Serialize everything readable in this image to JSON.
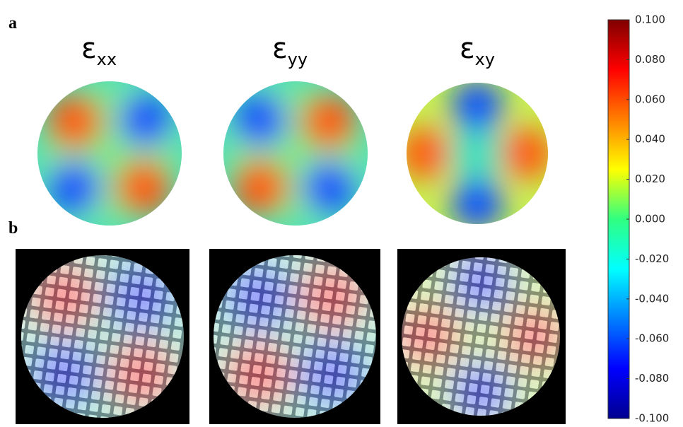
{
  "panel_labels": [
    "a",
    "b"
  ],
  "titles": [
    {
      "symbol": "ε",
      "subscript": "xx"
    },
    {
      "symbol": "ε",
      "subscript": "yy"
    },
    {
      "symbol": "ε",
      "subscript": "xy"
    }
  ],
  "colorbar": {
    "lim": [
      -0.1,
      0.1
    ],
    "ticks": [
      {
        "value": 0.1,
        "label": "0.100"
      },
      {
        "value": 0.08,
        "label": "0.080"
      },
      {
        "value": 0.06,
        "label": "0.060"
      },
      {
        "value": 0.04,
        "label": "0.040"
      },
      {
        "value": 0.02,
        "label": "0.020"
      },
      {
        "value": 0,
        "label": "0.000"
      },
      {
        "value": -0.02,
        "label": "-0.020"
      },
      {
        "value": -0.04,
        "label": "-0.040"
      },
      {
        "value": -0.06,
        "label": "-0.060"
      },
      {
        "value": -0.08,
        "label": "-0.080"
      },
      {
        "value": -0.1,
        "label": "-0.100"
      }
    ]
  }
}
